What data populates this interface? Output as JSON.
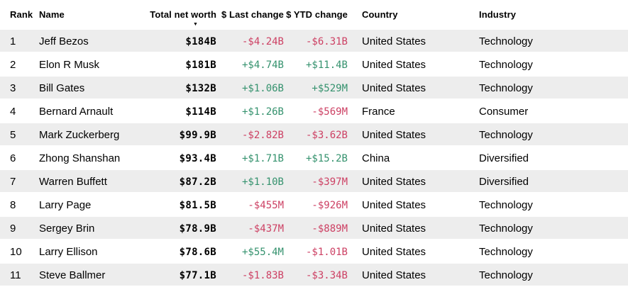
{
  "table": {
    "columns": [
      {
        "key": "rank",
        "label": "Rank"
      },
      {
        "key": "name",
        "label": "Name"
      },
      {
        "key": "net_worth",
        "label": "Total net worth",
        "sorted": "desc"
      },
      {
        "key": "last_change",
        "label": "$ Last change"
      },
      {
        "key": "ytd_change",
        "label": "$ YTD change"
      },
      {
        "key": "country",
        "label": "Country"
      },
      {
        "key": "industry",
        "label": "Industry"
      }
    ],
    "rows": [
      {
        "rank": "1",
        "name": "Jeff Bezos",
        "net_worth": "$184B",
        "last_change": "-$4.24B",
        "ytd_change": "-$6.31B",
        "country": "United States",
        "industry": "Technology"
      },
      {
        "rank": "2",
        "name": "Elon R Musk",
        "net_worth": "$181B",
        "last_change": "+$4.74B",
        "ytd_change": "+$11.4B",
        "country": "United States",
        "industry": "Technology"
      },
      {
        "rank": "3",
        "name": "Bill Gates",
        "net_worth": "$132B",
        "last_change": "+$1.06B",
        "ytd_change": "+$529M",
        "country": "United States",
        "industry": "Technology"
      },
      {
        "rank": "4",
        "name": "Bernard Arnault",
        "net_worth": "$114B",
        "last_change": "+$1.26B",
        "ytd_change": "-$569M",
        "country": "France",
        "industry": "Consumer"
      },
      {
        "rank": "5",
        "name": "Mark Zuckerberg",
        "net_worth": "$99.9B",
        "last_change": "-$2.82B",
        "ytd_change": "-$3.62B",
        "country": "United States",
        "industry": "Technology"
      },
      {
        "rank": "6",
        "name": "Zhong Shanshan",
        "net_worth": "$93.4B",
        "last_change": "+$1.71B",
        "ytd_change": "+$15.2B",
        "country": "China",
        "industry": "Diversified"
      },
      {
        "rank": "7",
        "name": "Warren Buffett",
        "net_worth": "$87.2B",
        "last_change": "+$1.10B",
        "ytd_change": "-$397M",
        "country": "United States",
        "industry": "Diversified"
      },
      {
        "rank": "8",
        "name": "Larry Page",
        "net_worth": "$81.5B",
        "last_change": "-$455M",
        "ytd_change": "-$926M",
        "country": "United States",
        "industry": "Technology"
      },
      {
        "rank": "9",
        "name": "Sergey Brin",
        "net_worth": "$78.9B",
        "last_change": "-$437M",
        "ytd_change": "-$889M",
        "country": "United States",
        "industry": "Technology"
      },
      {
        "rank": "10",
        "name": "Larry Ellison",
        "net_worth": "$78.6B",
        "last_change": "+$55.4M",
        "ytd_change": "-$1.01B",
        "country": "United States",
        "industry": "Technology"
      },
      {
        "rank": "11",
        "name": "Steve Ballmer",
        "net_worth": "$77.1B",
        "last_change": "-$1.83B",
        "ytd_change": "-$3.34B",
        "country": "United States",
        "industry": "Technology"
      }
    ]
  },
  "icons": {
    "sort_descending": "▼"
  },
  "colors": {
    "positive": "#35926e",
    "negative": "#cd4164",
    "row_alt": "#ededed",
    "header_text": "#000000"
  }
}
